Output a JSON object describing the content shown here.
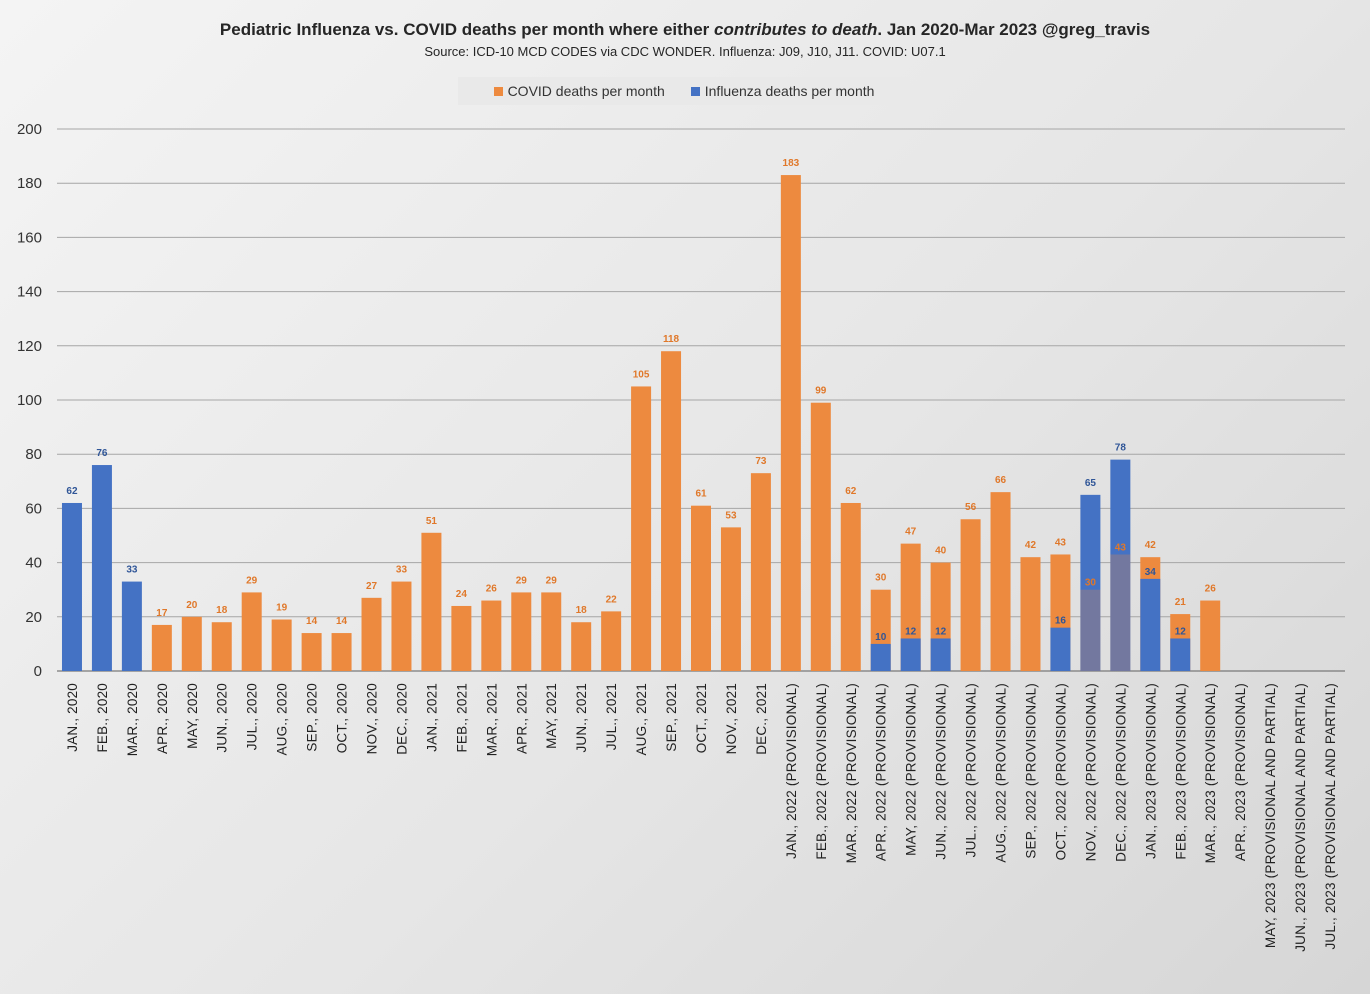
{
  "chart_data": {
    "type": "bar",
    "title_main": "Pediatric Influenza vs. COVID deaths per month where either ",
    "title_em": "contributes to death",
    "title_tail": ".  Jan 2020-Mar 2023 @greg_travis",
    "subtitle": "Source: ICD-10 MCD CODES via CDC WONDER.  Influenza: J09, J10, J11.  COVID: U07.1",
    "ylim": [
      0,
      200
    ],
    "yticks": [
      0,
      20,
      40,
      60,
      80,
      100,
      120,
      140,
      160,
      180,
      200
    ],
    "grid": true,
    "legend_position": "top",
    "colors": {
      "covid": "#ED8A3F",
      "influenza": "#4472C4",
      "covid_label": "#E0782A",
      "influenza_label": "#2F5597"
    },
    "categories": [
      "JAN., 2020",
      "FEB., 2020",
      "MAR., 2020",
      "APR., 2020",
      "MAY, 2020",
      "JUN., 2020",
      "JUL., 2020",
      "AUG., 2020",
      "SEP., 2020",
      "OCT., 2020",
      "NOV., 2020",
      "DEC., 2020",
      "JAN., 2021",
      "FEB., 2021",
      "MAR., 2021",
      "APR., 2021",
      "MAY, 2021",
      "JUN., 2021",
      "JUL., 2021",
      "AUG., 2021",
      "SEP., 2021",
      "OCT., 2021",
      "NOV., 2021",
      "DEC., 2021",
      "JAN., 2022 (PROVISIONAL)",
      "FEB., 2022 (PROVISIONAL)",
      "MAR., 2022 (PROVISIONAL)",
      "APR., 2022 (PROVISIONAL)",
      "MAY, 2022 (PROVISIONAL)",
      "JUN., 2022 (PROVISIONAL)",
      "JUL., 2022 (PROVISIONAL)",
      "AUG., 2022 (PROVISIONAL)",
      "SEP., 2022 (PROVISIONAL)",
      "OCT., 2022 (PROVISIONAL)",
      "NOV., 2022 (PROVISIONAL)",
      "DEC., 2022 (PROVISIONAL)",
      "JAN., 2023 (PROVISIONAL)",
      "FEB., 2023 (PROVISIONAL)",
      "MAR., 2023 (PROVISIONAL)",
      "APR., 2023 (PROVISIONAL)",
      "MAY, 2023 (PROVISIONAL AND PARTIAL)",
      "JUN., 2023 (PROVISIONAL AND PARTIAL)",
      "JUL., 2023 (PROVISIONAL AND PARTIAL)"
    ],
    "series": [
      {
        "name": "COVID deaths per month",
        "key": "covid",
        "values": [
          null,
          null,
          null,
          17,
          20,
          18,
          29,
          19,
          14,
          14,
          27,
          33,
          51,
          24,
          26,
          29,
          29,
          18,
          22,
          105,
          118,
          61,
          53,
          73,
          183,
          99,
          62,
          30,
          47,
          40,
          56,
          66,
          42,
          43,
          30,
          43,
          42,
          21,
          26,
          null,
          null,
          null,
          null
        ]
      },
      {
        "name": "Influenza deaths per month",
        "key": "influenza",
        "values": [
          62,
          76,
          33,
          null,
          null,
          null,
          null,
          null,
          null,
          null,
          null,
          null,
          null,
          null,
          null,
          null,
          null,
          null,
          null,
          null,
          null,
          null,
          null,
          null,
          null,
          null,
          null,
          10,
          12,
          12,
          null,
          null,
          null,
          16,
          65,
          78,
          34,
          12,
          null,
          null,
          null,
          null,
          null
        ]
      }
    ]
  },
  "legend": {
    "covid_label": "COVID deaths per month",
    "influenza_label": "Influenza deaths per month"
  }
}
